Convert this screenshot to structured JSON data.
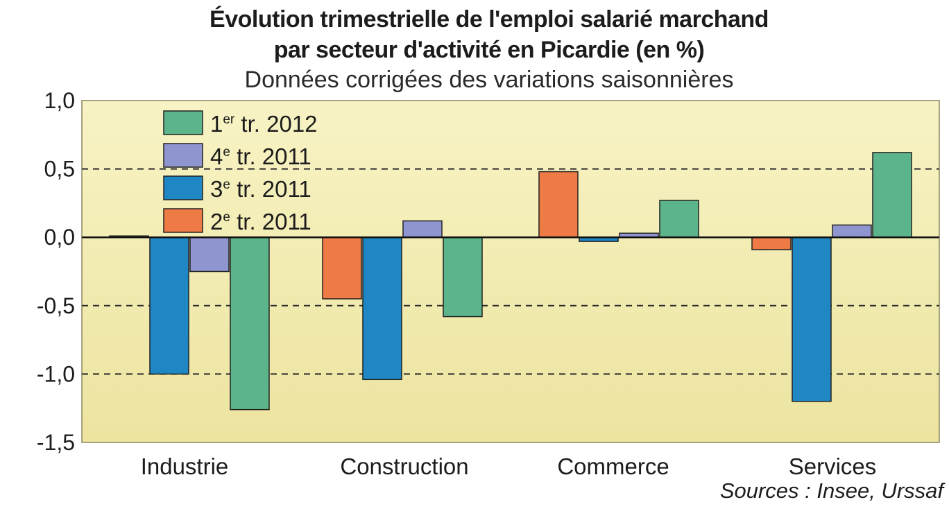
{
  "header": {
    "title_line1": "Évolution trimestrielle de l'emploi salarié marchand",
    "title_line2": "par secteur d'activité en Picardie (en %)",
    "subtitle": "Données corrigées des variations saisonnières"
  },
  "footer": {
    "sources": "Sources : Insee, Urssaf"
  },
  "colors": {
    "background_top": "#f7f3c4",
    "background_bottom": "#ede4a0",
    "grid_dashed": "#2b2b2b",
    "zero_line": "#111111"
  },
  "chart_data": {
    "type": "bar",
    "categories": [
      "Industrie",
      "Construction",
      "Commerce",
      "Services"
    ],
    "ylim": [
      -1.5,
      1.0
    ],
    "yticks": [
      1.0,
      0.5,
      0.0,
      -0.5,
      -1.0,
      -1.5
    ],
    "ytick_labels": [
      "1,0",
      "0,5",
      "0,0",
      "-0,5",
      "-1,0",
      "-1,5"
    ],
    "gridlines_dashed": [
      0.5,
      -0.5,
      -1.0
    ],
    "series": [
      {
        "name": "2e tr. 2011",
        "name_main": "2",
        "name_sup": "e",
        "name_rest": " tr. 2011",
        "color": "#ee7a45",
        "values": [
          0.01,
          -0.45,
          0.48,
          -0.09
        ]
      },
      {
        "name": "3e tr. 2011",
        "name_main": "3",
        "name_sup": "e",
        "name_rest": " tr. 2011",
        "color": "#1f87c4",
        "values": [
          -1.0,
          -1.04,
          -0.03,
          -1.2
        ]
      },
      {
        "name": "4e tr. 2011",
        "name_main": "4",
        "name_sup": "e",
        "name_rest": " tr. 2011",
        "color": "#8f95cf",
        "values": [
          -0.25,
          0.12,
          0.03,
          0.09
        ]
      },
      {
        "name": "1er tr. 2012",
        "name_main": "1",
        "name_sup": "er",
        "name_rest": " tr. 2012",
        "color": "#5cb48a",
        "values": [
          -1.26,
          -0.58,
          0.27,
          0.62
        ]
      }
    ],
    "legend_order": [
      3,
      2,
      1,
      0
    ],
    "legend_position": "top-left",
    "xlabel": "",
    "ylabel": ""
  }
}
